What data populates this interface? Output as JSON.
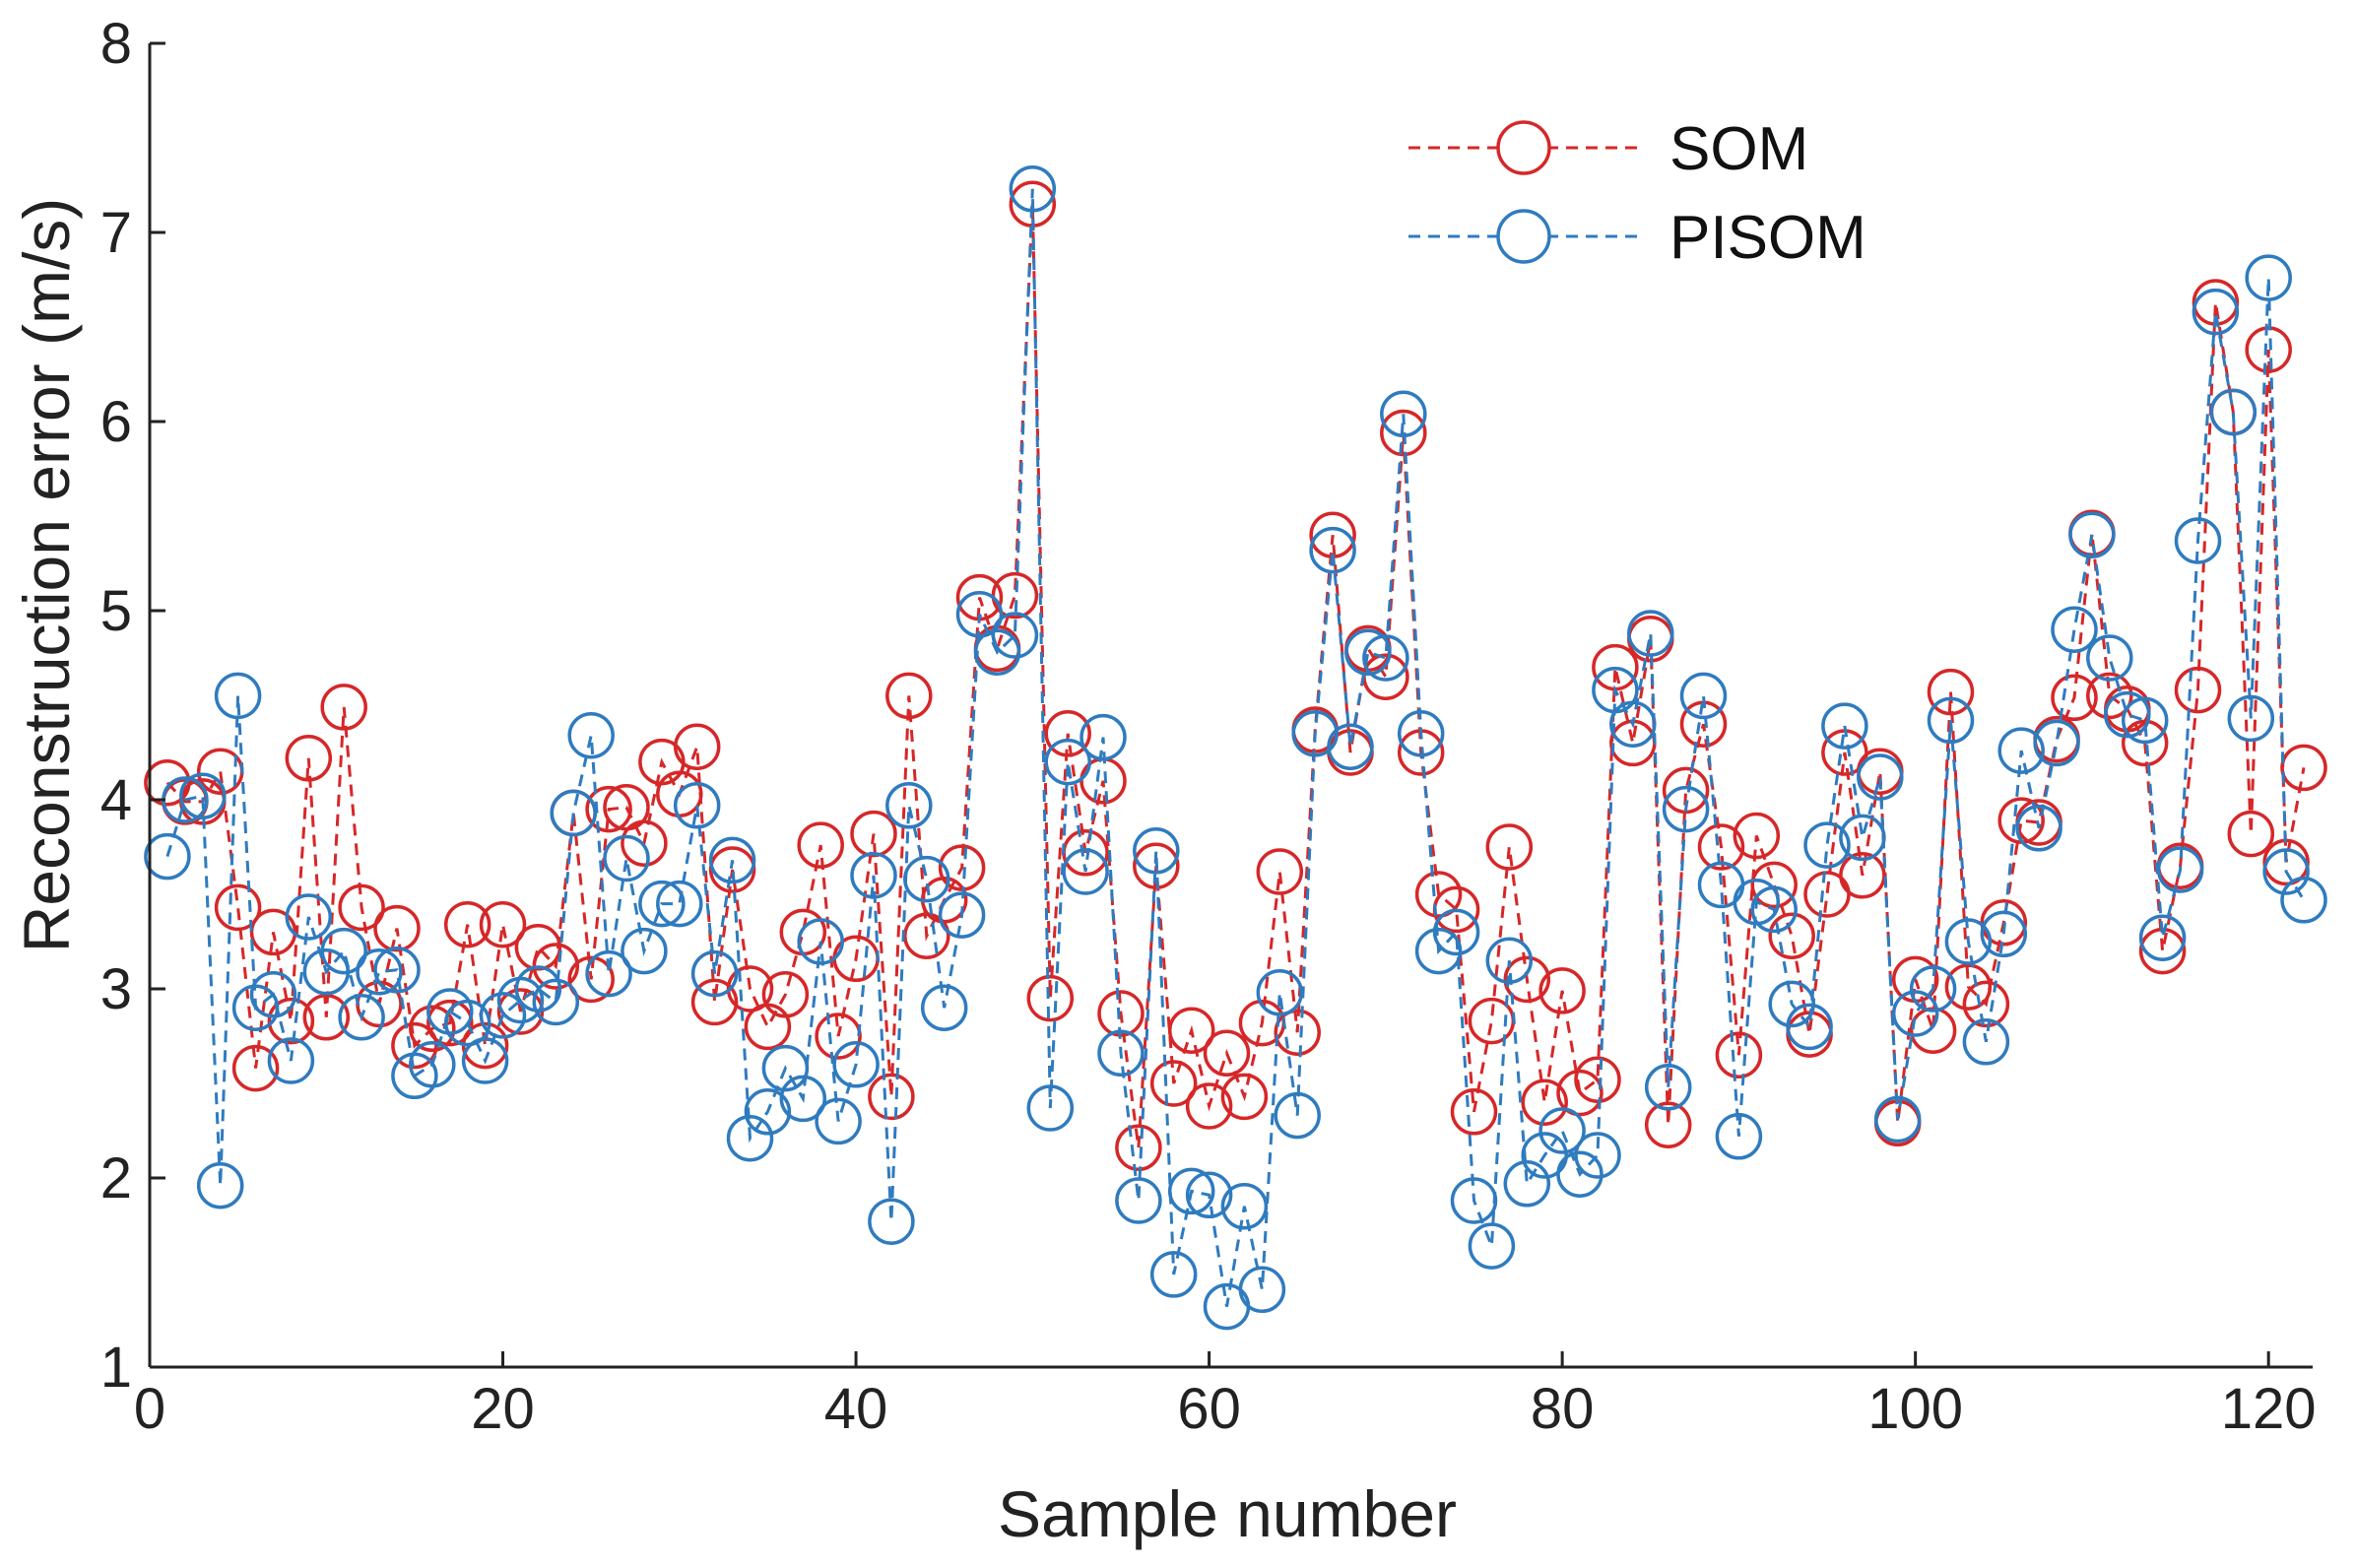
{
  "chart_data": {
    "type": "line",
    "title": "",
    "xlabel": "Sample number",
    "ylabel": "Reconstruction error (m/s)",
    "xlim": [
      0,
      122.5
    ],
    "ylim": [
      1,
      8
    ],
    "xticks": [
      0,
      20,
      40,
      60,
      80,
      100,
      120
    ],
    "yticks": [
      1,
      2,
      3,
      4,
      5,
      6,
      7,
      8
    ],
    "grid": false,
    "legend_position": "top-right",
    "series": [
      {
        "name": "SOM",
        "color": "#d62728",
        "line_style": "dashed",
        "marker": "open-circle",
        "x": [
          1,
          2,
          3,
          4,
          5,
          6,
          7,
          8,
          9,
          10,
          11,
          12,
          13,
          14,
          15,
          16,
          17,
          18,
          19,
          20,
          21,
          22,
          23,
          24,
          25,
          26,
          27,
          28,
          29,
          30,
          31,
          32,
          33,
          34,
          35,
          36,
          37,
          38,
          39,
          40,
          41,
          42,
          43,
          44,
          45,
          46,
          47,
          48,
          49,
          50,
          51,
          52,
          53,
          54,
          55,
          56,
          57,
          58,
          59,
          60,
          61,
          62,
          63,
          64,
          65,
          66,
          67,
          68,
          69,
          70,
          71,
          72,
          73,
          74,
          75,
          76,
          77,
          78,
          79,
          80,
          81,
          82,
          83,
          84,
          85,
          86,
          87,
          88,
          89,
          90,
          91,
          92,
          93,
          94,
          95,
          96,
          97,
          98,
          99,
          100,
          101,
          102,
          103,
          104,
          105,
          106,
          107,
          108,
          109,
          110,
          111,
          112,
          113,
          114,
          115,
          116,
          117,
          118,
          119,
          120,
          121,
          122
        ],
        "values": [
          4.09,
          3.99,
          3.99,
          4.15,
          3.43,
          2.58,
          3.3,
          2.83,
          4.22,
          2.85,
          4.49,
          3.43,
          2.92,
          3.32,
          2.7,
          2.79,
          2.82,
          3.34,
          2.7,
          3.34,
          2.88,
          3.22,
          3.12,
          3.93,
          3.05,
          3.95,
          3.96,
          3.77,
          4.2,
          4.03,
          4.28,
          2.93,
          3.63,
          3.0,
          2.8,
          2.97,
          3.3,
          3.76,
          2.75,
          3.16,
          3.82,
          2.43,
          4.55,
          3.28,
          3.47,
          3.64,
          5.07,
          4.8,
          5.08,
          7.15,
          2.95,
          4.35,
          3.72,
          4.1,
          2.87,
          2.16,
          3.65,
          2.5,
          2.78,
          2.38,
          2.66,
          2.43,
          2.82,
          3.62,
          2.77,
          4.37,
          5.4,
          4.25,
          4.8,
          4.65,
          5.94,
          4.25,
          3.5,
          3.42,
          2.35,
          2.83,
          3.75,
          3.05,
          2.4,
          2.99,
          2.45,
          2.52,
          4.7,
          4.3,
          4.85,
          2.28,
          4.05,
          4.4,
          3.75,
          2.65,
          3.81,
          3.55,
          3.28,
          2.76,
          3.5,
          4.25,
          3.6,
          4.15,
          2.29,
          3.05,
          2.78,
          4.57,
          3.01,
          2.92,
          3.35,
          3.89,
          3.88,
          4.32,
          4.54,
          5.41,
          4.55,
          4.48,
          4.3,
          3.2,
          3.65,
          4.58,
          6.63,
          6.05,
          3.82,
          6.38,
          3.67,
          4.17
        ]
      },
      {
        "name": "PISOM",
        "color": "#2f7bbf",
        "line_style": "dashed",
        "marker": "open-circle",
        "x": [
          1,
          2,
          3,
          4,
          5,
          6,
          7,
          8,
          9,
          10,
          11,
          12,
          13,
          14,
          15,
          16,
          17,
          18,
          19,
          20,
          21,
          22,
          23,
          24,
          25,
          26,
          27,
          28,
          29,
          30,
          31,
          32,
          33,
          34,
          35,
          36,
          37,
          38,
          39,
          40,
          41,
          42,
          43,
          44,
          45,
          46,
          47,
          48,
          49,
          50,
          51,
          52,
          53,
          54,
          55,
          56,
          57,
          58,
          59,
          60,
          61,
          62,
          63,
          64,
          65,
          66,
          67,
          68,
          69,
          70,
          71,
          72,
          73,
          74,
          75,
          76,
          77,
          78,
          79,
          80,
          81,
          82,
          83,
          84,
          85,
          86,
          87,
          88,
          89,
          90,
          91,
          92,
          93,
          94,
          95,
          96,
          97,
          98,
          99,
          100,
          101,
          102,
          103,
          104,
          105,
          106,
          107,
          108,
          109,
          110,
          111,
          112,
          113,
          114,
          115,
          116,
          117,
          118,
          119,
          120,
          121,
          122
        ],
        "values": [
          3.7,
          4.0,
          4.02,
          1.96,
          4.55,
          2.9,
          2.97,
          2.62,
          3.38,
          3.09,
          3.2,
          2.85,
          3.09,
          3.1,
          2.54,
          2.6,
          2.88,
          2.82,
          2.62,
          2.86,
          2.94,
          3.0,
          2.93,
          3.93,
          4.34,
          3.08,
          3.69,
          3.2,
          3.45,
          3.45,
          3.97,
          3.08,
          3.68,
          2.21,
          2.35,
          2.58,
          2.42,
          3.25,
          2.3,
          2.6,
          3.6,
          1.77,
          3.97,
          3.58,
          2.9,
          3.39,
          4.98,
          4.78,
          4.87,
          7.23,
          2.37,
          4.2,
          3.62,
          4.33,
          2.66,
          1.88,
          3.73,
          1.49,
          1.93,
          1.91,
          1.32,
          1.85,
          1.41,
          2.98,
          2.33,
          4.35,
          5.32,
          4.28,
          4.78,
          4.75,
          6.04,
          4.35,
          3.2,
          3.3,
          1.88,
          1.64,
          3.15,
          1.97,
          2.12,
          2.25,
          2.02,
          2.12,
          4.58,
          4.4,
          4.88,
          2.48,
          3.95,
          4.55,
          3.55,
          2.22,
          3.46,
          3.42,
          2.92,
          2.8,
          3.76,
          4.39,
          3.8,
          4.12,
          2.31,
          2.87,
          3.0,
          4.42,
          3.25,
          2.72,
          3.29,
          4.26,
          3.85,
          4.3,
          4.9,
          5.4,
          4.75,
          4.45,
          4.42,
          3.27,
          3.63,
          5.37,
          6.58,
          6.05,
          4.43,
          6.76,
          3.62,
          3.47
        ]
      }
    ]
  }
}
